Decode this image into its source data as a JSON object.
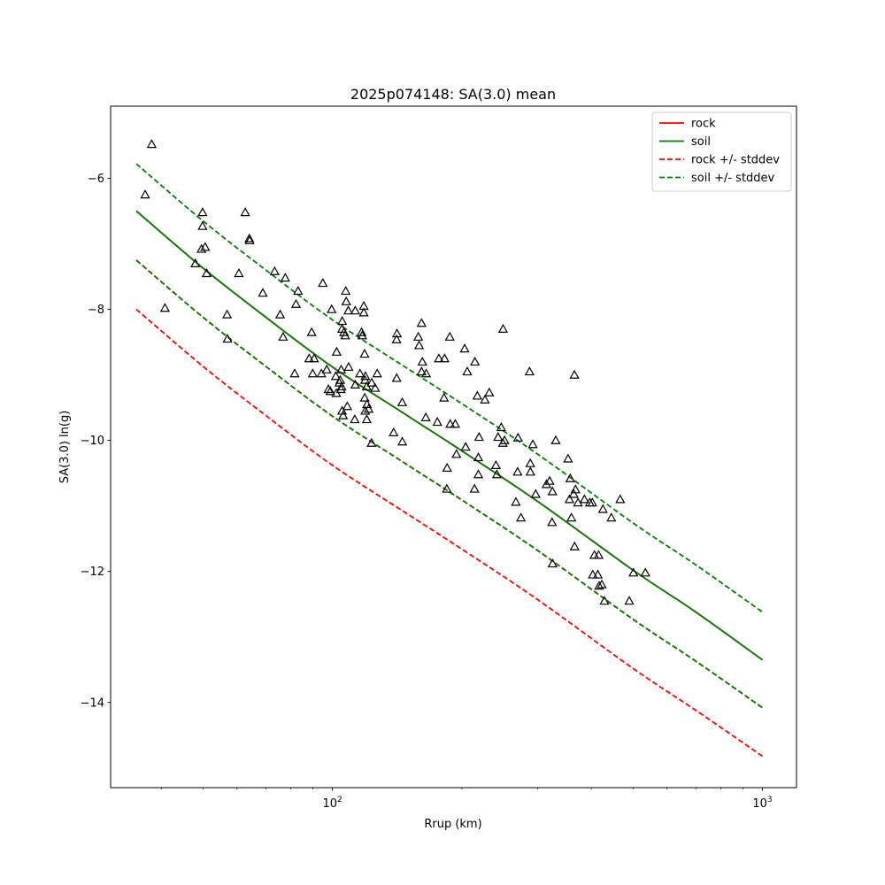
{
  "chart_data": {
    "type": "scatter",
    "title": "2025p074148: SA(3.0) mean",
    "xlabel": "Rrup (km)",
    "ylabel": "SA(3.0) ln(g)",
    "xscale": "log",
    "xlim": [
      30.5,
      1200
    ],
    "ylim": [
      -15.3,
      -4.9
    ],
    "x_ticks": [
      {
        "value": 100,
        "base": "10",
        "exp": "2"
      },
      {
        "value": 1000,
        "base": "10",
        "exp": "3"
      }
    ],
    "y_ticks": [
      {
        "value": -6,
        "label": "−6"
      },
      {
        "value": -8,
        "label": "−8"
      },
      {
        "value": -10,
        "label": "−10"
      },
      {
        "value": -12,
        "label": "−12"
      },
      {
        "value": -14,
        "label": "−14"
      }
    ],
    "grid": false,
    "legend_position": "top-right",
    "legend": [
      {
        "label": "rock",
        "color": "#ff0000",
        "dash": "solid"
      },
      {
        "label": "soil",
        "color": "#008000",
        "dash": "solid"
      },
      {
        "label": "rock +/- stddev",
        "color": "#ff0000",
        "dash": "dashed"
      },
      {
        "label": "soil +/- stddev",
        "color": "#008000",
        "dash": "dashed"
      }
    ],
    "series": [
      {
        "name": "rock",
        "color": "#ff0000",
        "dash": "solid",
        "x": [
          35,
          50,
          70,
          100,
          150,
          200,
          300,
          500,
          700,
          1000
        ],
        "y": [
          -6.5,
          -7.37,
          -8.12,
          -8.88,
          -9.63,
          -10.16,
          -10.93,
          -11.98,
          -12.62,
          -13.35
        ]
      },
      {
        "name": "soil",
        "color": "#008000",
        "dash": "solid",
        "x": [
          35,
          50,
          70,
          100,
          150,
          200,
          300,
          500,
          700,
          1000
        ],
        "y": [
          -6.5,
          -7.37,
          -8.12,
          -8.88,
          -9.63,
          -10.16,
          -10.93,
          -11.98,
          -12.62,
          -13.35
        ]
      },
      {
        "name": "rock +/- stddev",
        "color": "#ff0000",
        "dash": "dashed",
        "x": [
          35,
          50,
          70,
          100,
          150,
          200,
          300,
          500,
          700,
          1000
        ],
        "y": [
          -7.25,
          -8.12,
          -8.87,
          -9.63,
          -10.38,
          -10.91,
          -11.68,
          -12.73,
          -13.37,
          -14.08
        ]
      },
      {
        "name": "rock +/- stddev",
        "color": "#ff0000",
        "dash": "dashed",
        "x": [
          35,
          50,
          70,
          100,
          150,
          200,
          300,
          500,
          700,
          1000
        ],
        "y": [
          -8.0,
          -8.87,
          -9.62,
          -10.38,
          -11.13,
          -11.66,
          -12.43,
          -13.48,
          -14.12,
          -14.82
        ]
      },
      {
        "name": "soil +/- stddev",
        "color": "#008000",
        "dash": "dashed",
        "x": [
          35,
          50,
          70,
          100,
          150,
          200,
          300,
          500,
          700,
          1000
        ],
        "y": [
          -7.25,
          -8.12,
          -8.87,
          -9.63,
          -10.38,
          -10.91,
          -11.68,
          -12.73,
          -13.37,
          -14.08
        ]
      },
      {
        "name": "soil +/- stddev",
        "color": "#008000",
        "dash": "dashed",
        "x": [
          35,
          50,
          70,
          100,
          150,
          200,
          300,
          500,
          700,
          1000
        ],
        "y": [
          -5.78,
          -6.65,
          -7.4,
          -8.16,
          -8.91,
          -9.44,
          -10.21,
          -11.26,
          -11.9,
          -12.62
        ]
      }
    ],
    "observations": {
      "marker": "triangle-open",
      "color": "#000000",
      "points": [
        [
          38.0,
          -5.48
        ],
        [
          36.7,
          -6.25
        ],
        [
          40.8,
          -7.98
        ],
        [
          48.0,
          -7.3
        ],
        [
          49.6,
          -7.08
        ],
        [
          49.9,
          -6.73
        ],
        [
          49.9,
          -6.52
        ],
        [
          50.6,
          -7.05
        ],
        [
          51.0,
          -7.45
        ],
        [
          56.9,
          -8.08
        ],
        [
          57.0,
          -8.45
        ],
        [
          60.6,
          -7.45
        ],
        [
          62.7,
          -6.52
        ],
        [
          64.1,
          -6.92
        ],
        [
          64.2,
          -6.95
        ],
        [
          68.9,
          -7.75
        ],
        [
          73.4,
          -7.42
        ],
        [
          75.6,
          -8.08
        ],
        [
          76.8,
          -8.42
        ],
        [
          77.7,
          -7.52
        ],
        [
          81.7,
          -8.98
        ],
        [
          82.3,
          -7.92
        ],
        [
          83.2,
          -7.72
        ],
        [
          88.3,
          -8.75
        ],
        [
          89.5,
          -8.35
        ],
        [
          90.0,
          -8.98
        ],
        [
          90.7,
          -8.75
        ],
        [
          94.3,
          -8.98
        ],
        [
          95.0,
          -7.6
        ],
        [
          97.0,
          -8.92
        ],
        [
          97.9,
          -9.22
        ],
        [
          98.9,
          -9.25
        ],
        [
          99.6,
          -8.0
        ],
        [
          101.8,
          -9.02
        ],
        [
          102.1,
          -9.28
        ],
        [
          102.3,
          -8.65
        ],
        [
          103.8,
          -9.12
        ],
        [
          104.3,
          -9.08
        ],
        [
          104.7,
          -9.22
        ],
        [
          104.8,
          -8.92
        ],
        [
          105.1,
          -9.18
        ],
        [
          105.3,
          -8.3
        ],
        [
          105.3,
          -9.55
        ],
        [
          105.4,
          -8.18
        ],
        [
          105.9,
          -9.62
        ],
        [
          106.4,
          -8.35
        ],
        [
          107.1,
          -8.4
        ],
        [
          107.4,
          -7.72
        ],
        [
          107.7,
          -7.88
        ],
        [
          108.3,
          -9.48
        ],
        [
          108.9,
          -8.02
        ],
        [
          109.1,
          -8.88
        ],
        [
          112.7,
          -9.68
        ],
        [
          113.0,
          -8.02
        ],
        [
          113.0,
          -9.15
        ],
        [
          115.9,
          -8.98
        ],
        [
          116.9,
          -8.35
        ],
        [
          117.3,
          -8.4
        ],
        [
          118.3,
          -7.95
        ],
        [
          118.3,
          -8.05
        ],
        [
          118.8,
          -8.68
        ],
        [
          118.9,
          -9.35
        ],
        [
          119.1,
          -9.08
        ],
        [
          119.2,
          -9.55
        ],
        [
          119.3,
          -9.02
        ],
        [
          120.1,
          -9.18
        ],
        [
          120.2,
          -9.68
        ],
        [
          120.4,
          -9.45
        ],
        [
          121.4,
          -9.52
        ],
        [
          123.3,
          -10.04
        ],
        [
          123.4,
          -9.12
        ],
        [
          125.7,
          -9.2
        ],
        [
          127.1,
          -8.98
        ],
        [
          138.8,
          -9.88
        ],
        [
          141.0,
          -8.46
        ],
        [
          141.1,
          -9.05
        ],
        [
          141.3,
          -8.37
        ],
        [
          145.3,
          -9.42
        ],
        [
          145.4,
          -10.02
        ],
        [
          158.4,
          -8.42
        ],
        [
          159.1,
          -8.55
        ],
        [
          161.2,
          -8.21
        ],
        [
          161.2,
          -8.95
        ],
        [
          161.9,
          -8.8
        ],
        [
          164.9,
          -9.65
        ],
        [
          165.2,
          -8.98
        ],
        [
          175.4,
          -9.72
        ],
        [
          176.8,
          -8.75
        ],
        [
          181.8,
          -9.35
        ],
        [
          182.3,
          -8.75
        ],
        [
          184.5,
          -10.74
        ],
        [
          184.8,
          -10.42
        ],
        [
          187.5,
          -8.42
        ],
        [
          187.9,
          -9.75
        ],
        [
          193.1,
          -9.75
        ],
        [
          194.3,
          -10.21
        ],
        [
          203.0,
          -8.6
        ],
        [
          204.1,
          -10.1
        ],
        [
          205.9,
          -8.95
        ],
        [
          214.0,
          -10.74
        ],
        [
          214.5,
          -8.8
        ],
        [
          217.3,
          -9.32
        ],
        [
          218.5,
          -10.52
        ],
        [
          218.5,
          -10.26
        ],
        [
          219.3,
          -9.95
        ],
        [
          226.3,
          -9.38
        ],
        [
          231.6,
          -9.27
        ],
        [
          240.0,
          -10.38
        ],
        [
          241.2,
          -10.52
        ],
        [
          242.8,
          -9.95
        ],
        [
          246.9,
          -9.8
        ],
        [
          249.1,
          -10.04
        ],
        [
          249.4,
          -8.3
        ],
        [
          251.4,
          -10.0
        ],
        [
          267.1,
          -10.94
        ],
        [
          269.6,
          -10.48
        ],
        [
          270.2,
          -9.96
        ],
        [
          274.4,
          -11.18
        ],
        [
          287.4,
          -8.95
        ],
        [
          288.5,
          -10.35
        ],
        [
          288.7,
          -10.48
        ],
        [
          292.4,
          -10.06
        ],
        [
          297.0,
          -10.82
        ],
        [
          314.6,
          -10.67
        ],
        [
          320.0,
          -10.62
        ],
        [
          324.2,
          -11.25
        ],
        [
          324.9,
          -10.78
        ],
        [
          325.0,
          -11.88
        ],
        [
          330.6,
          -10.0
        ],
        [
          353.2,
          -10.28
        ],
        [
          355.9,
          -10.9
        ],
        [
          357.3,
          -10.58
        ],
        [
          359.6,
          -11.18
        ],
        [
          364.0,
          -10.82
        ],
        [
          365.4,
          -9.0
        ],
        [
          365.8,
          -11.62
        ],
        [
          367.5,
          -10.75
        ],
        [
          372.4,
          -10.95
        ],
        [
          385.5,
          -10.9
        ],
        [
          396.7,
          -10.95
        ],
        [
          402.1,
          -10.95
        ],
        [
          403.2,
          -12.05
        ],
        [
          406.6,
          -11.75
        ],
        [
          414.2,
          -12.05
        ],
        [
          416.0,
          -11.75
        ],
        [
          417.1,
          -12.22
        ],
        [
          423.1,
          -12.2
        ],
        [
          425.7,
          -11.05
        ],
        [
          429.1,
          -12.45
        ],
        [
          445.3,
          -11.18
        ],
        [
          467.0,
          -10.9
        ],
        [
          490.2,
          -12.45
        ],
        [
          501.1,
          -12.02
        ],
        [
          534.2,
          -12.02
        ]
      ]
    }
  }
}
